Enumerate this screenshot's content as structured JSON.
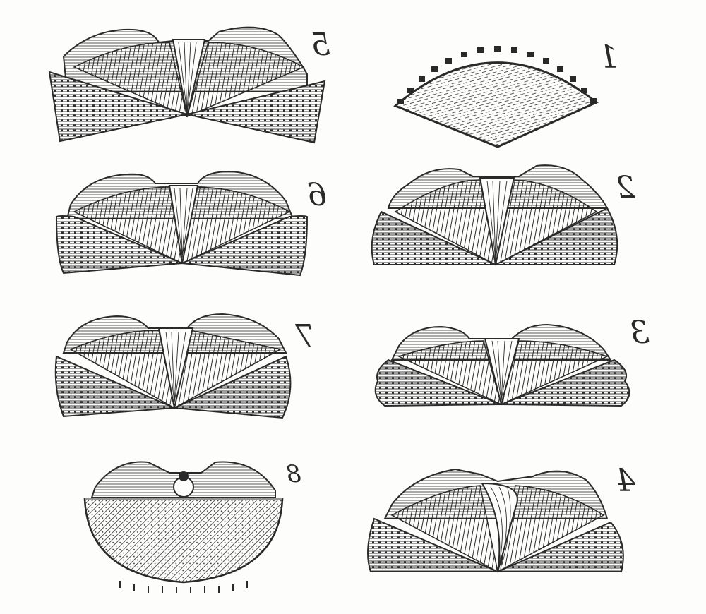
{
  "plate": {
    "ink": "#2a2a2a",
    "paper": "#fdfdfb",
    "figures": [
      {
        "id": "1",
        "label": "1",
        "kind": "fan"
      },
      {
        "id": "2",
        "label": "2",
        "kind": "valve"
      },
      {
        "id": "3",
        "label": "3",
        "kind": "valve"
      },
      {
        "id": "4",
        "label": "4",
        "kind": "valve"
      },
      {
        "id": "5",
        "label": "5",
        "kind": "valve"
      },
      {
        "id": "6",
        "label": "6",
        "kind": "valve"
      },
      {
        "id": "7",
        "label": "7",
        "kind": "valve"
      },
      {
        "id": "8",
        "label": "8",
        "kind": "round"
      }
    ]
  }
}
